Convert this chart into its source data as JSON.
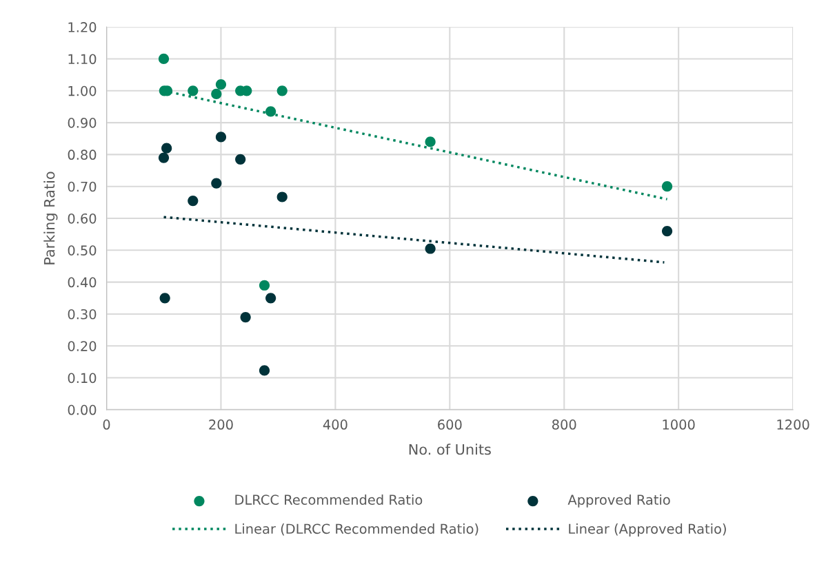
{
  "chart_data": {
    "type": "scatter",
    "xlabel": "No. of Units",
    "ylabel": "Parking Ratio",
    "xlim": [
      0,
      1200
    ],
    "xticks": [
      0,
      200,
      400,
      600,
      800,
      1000,
      1200
    ],
    "ylim": [
      0,
      1.2
    ],
    "yticks": [
      {
        "value": 0,
        "label": "0.00"
      },
      {
        "value": 0.1,
        "label": "0.10"
      },
      {
        "value": 0.2,
        "label": "0.20"
      },
      {
        "value": 0.3,
        "label": "0.30"
      },
      {
        "value": 0.4,
        "label": "0.40"
      },
      {
        "value": 0.5,
        "label": "0.50"
      },
      {
        "value": 0.6,
        "label": "0.60"
      },
      {
        "value": 0.7,
        "label": "0.70"
      },
      {
        "value": 0.8,
        "label": "0.80"
      },
      {
        "value": 0.9,
        "label": "0.90"
      },
      {
        "value": 1.0,
        "label": "1.00"
      },
      {
        "value": 1.1,
        "label": "1.10"
      },
      {
        "value": 1.2,
        "label": "1.20"
      }
    ],
    "grid": true,
    "legend": "bottom",
    "marker": "circle",
    "series": [
      {
        "name": "DLRCC Recommended Ratio",
        "color": "#00875f",
        "x": [
          100,
          101,
          106,
          151,
          200,
          192,
          234,
          245,
          307,
          287,
          276,
          566,
          980
        ],
        "values": [
          1.1,
          1.0,
          1.0,
          1.0,
          1.02,
          0.99,
          1.0,
          1.0,
          1.0,
          0.935,
          0.39,
          0.84,
          0.7
        ]
      },
      {
        "name": "Approved Ratio",
        "color": "#00333a",
        "x": [
          200,
          105,
          100,
          234,
          192,
          151,
          307,
          102,
          287,
          243,
          276,
          566,
          980
        ],
        "values": [
          0.855,
          0.82,
          0.79,
          0.785,
          0.71,
          0.655,
          0.667,
          0.35,
          0.35,
          0.29,
          0.123,
          0.505,
          0.56
        ]
      },
      {
        "name": "Linear (DLRCC Recommended Ratio)",
        "type": "line",
        "marker": "none",
        "line_style": "dotted",
        "color": "#00875f",
        "x": [
          100,
          980
        ],
        "values": [
          1.0,
          0.66
        ]
      },
      {
        "name": "Linear (Approved Ratio)",
        "type": "line",
        "marker": "none",
        "line_style": "dotted",
        "color": "#00333a",
        "x": [
          100,
          975
        ],
        "values": [
          0.604,
          0.462
        ]
      }
    ]
  }
}
